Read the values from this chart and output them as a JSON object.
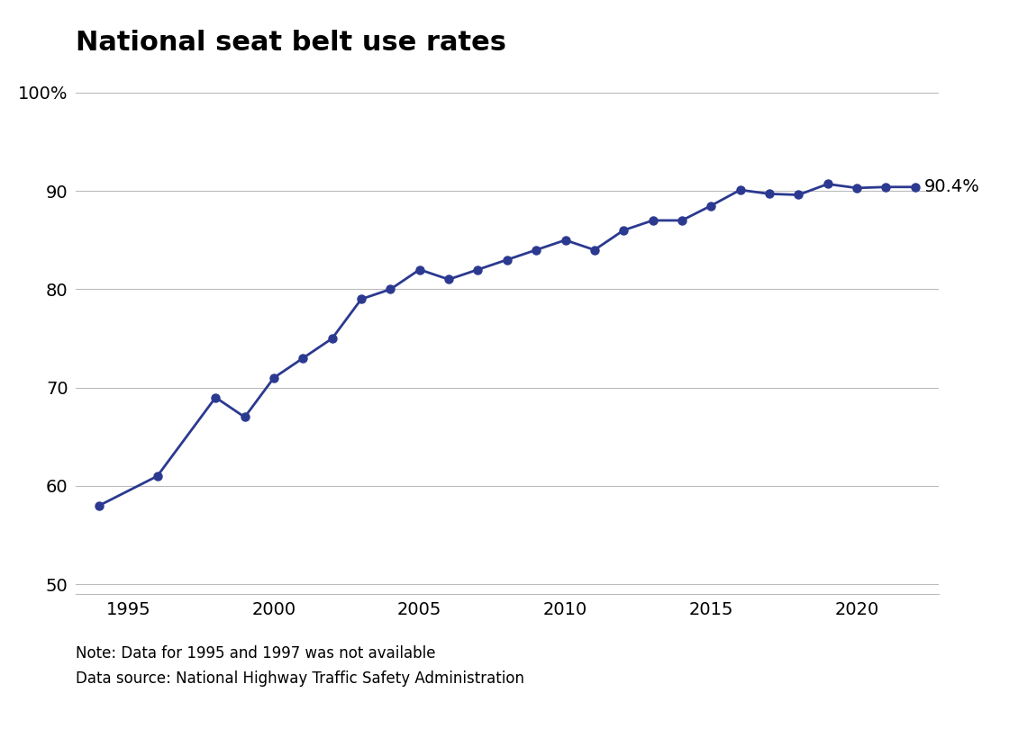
{
  "title": "National seat belt use rates",
  "years": [
    1994,
    1996,
    1998,
    1999,
    2000,
    2001,
    2002,
    2003,
    2004,
    2005,
    2006,
    2007,
    2008,
    2009,
    2010,
    2011,
    2012,
    2013,
    2014,
    2015,
    2016,
    2017,
    2018,
    2019,
    2020,
    2021,
    2022
  ],
  "values": [
    58.0,
    61.0,
    69.0,
    67.0,
    71.0,
    73.0,
    75.0,
    79.0,
    80.0,
    82.0,
    81.0,
    82.0,
    83.0,
    84.0,
    85.0,
    84.0,
    86.0,
    87.0,
    87.0,
    88.5,
    90.1,
    89.7,
    89.6,
    90.7,
    90.3,
    90.4,
    90.4
  ],
  "line_color": "#2b3990",
  "marker_color": "#2b3990",
  "annotation_text": "90.4%",
  "xlim": [
    1993.2,
    2022.8
  ],
  "ylim": [
    49,
    102
  ],
  "yticks": [
    50,
    60,
    70,
    80,
    90,
    100
  ],
  "ytick_labels": [
    "50",
    "60",
    "70",
    "80",
    "90",
    "100%"
  ],
  "xticks": [
    1995,
    2000,
    2005,
    2010,
    2015,
    2020
  ],
  "note_line1": "Note: Data for 1995 and 1997 was not available",
  "note_line2": "Data source: National Highway Traffic Safety Administration",
  "background_color": "#ffffff",
  "grid_color": "#bbbbbb",
  "title_fontsize": 22,
  "tick_fontsize": 14,
  "note_fontsize": 12,
  "annotation_fontsize": 14
}
